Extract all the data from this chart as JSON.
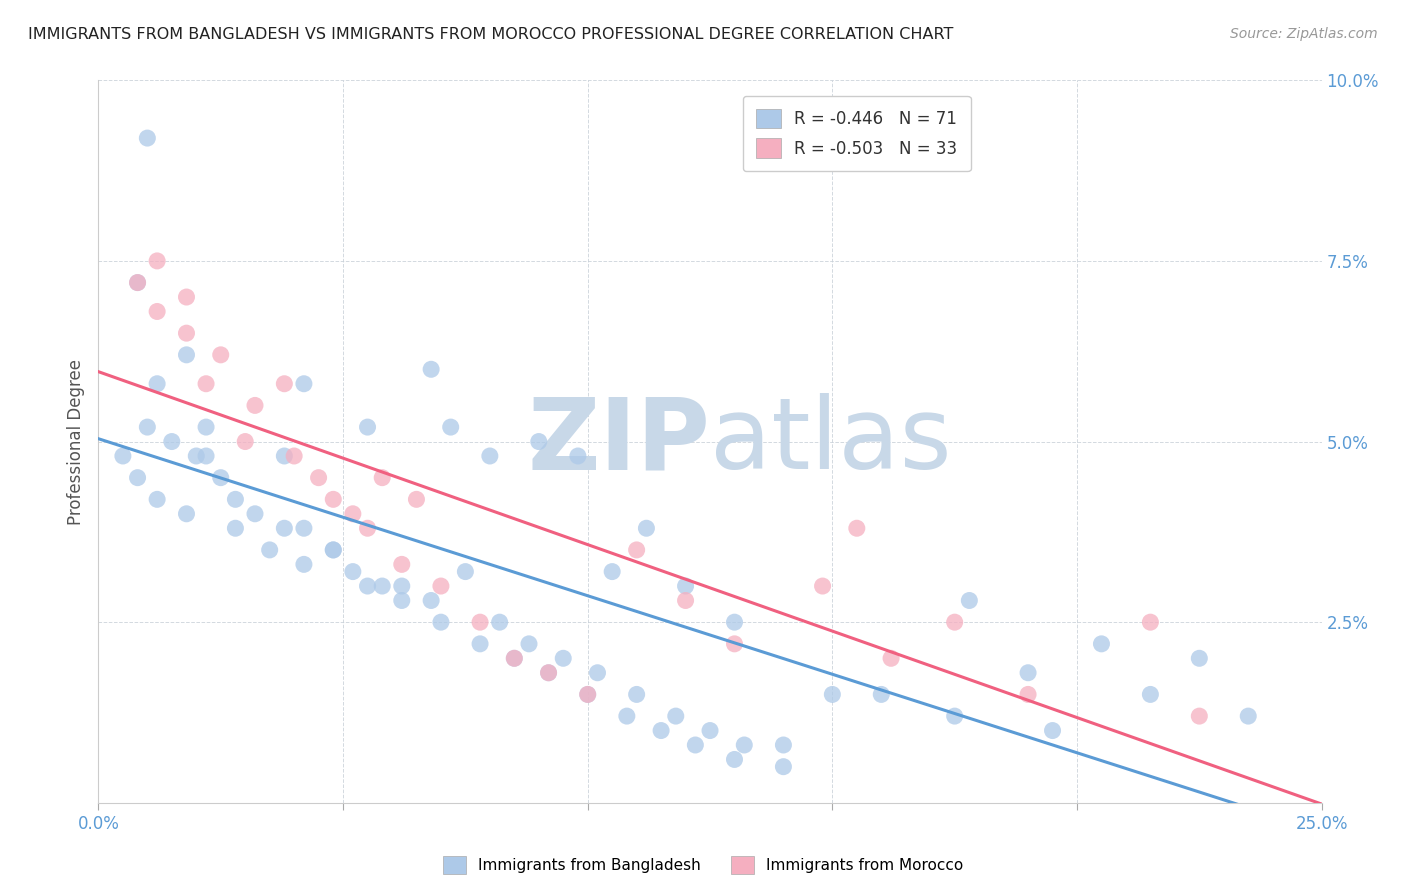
{
  "title": "IMMIGRANTS FROM BANGLADESH VS IMMIGRANTS FROM MOROCCO PROFESSIONAL DEGREE CORRELATION CHART",
  "source": "Source: ZipAtlas.com",
  "ylabel": "Professional Degree",
  "xlim": [
    0.0,
    0.25
  ],
  "ylim": [
    0.0,
    0.1
  ],
  "xticks": [
    0.0,
    0.05,
    0.1,
    0.15,
    0.2,
    0.25
  ],
  "yticks": [
    0.0,
    0.025,
    0.05,
    0.075,
    0.1
  ],
  "legend_r1": "R = -0.446",
  "legend_n1": "N = 71",
  "legend_r2": "R = -0.503",
  "legend_n2": "N = 33",
  "color_bangladesh": "#adc9e8",
  "color_morocco": "#f5afc0",
  "line_color_bangladesh": "#5b9bd5",
  "line_color_morocco": "#f06080",
  "watermark_zip": "ZIP",
  "watermark_atlas": "atlas",
  "watermark_color": "#c8d8e8",
  "bangladesh_x": [
    0.01,
    0.008,
    0.018,
    0.022,
    0.038,
    0.042,
    0.055,
    0.068,
    0.072,
    0.08,
    0.09,
    0.098,
    0.105,
    0.112,
    0.12,
    0.13,
    0.01,
    0.012,
    0.015,
    0.02,
    0.025,
    0.028,
    0.032,
    0.038,
    0.042,
    0.048,
    0.052,
    0.058,
    0.062,
    0.068,
    0.075,
    0.082,
    0.088,
    0.095,
    0.102,
    0.11,
    0.118,
    0.125,
    0.132,
    0.14,
    0.005,
    0.008,
    0.012,
    0.018,
    0.022,
    0.028,
    0.035,
    0.042,
    0.048,
    0.055,
    0.062,
    0.07,
    0.078,
    0.085,
    0.092,
    0.1,
    0.108,
    0.115,
    0.122,
    0.13,
    0.14,
    0.15,
    0.16,
    0.175,
    0.19,
    0.205,
    0.215,
    0.225,
    0.235,
    0.178,
    0.195
  ],
  "bangladesh_y": [
    0.092,
    0.072,
    0.062,
    0.052,
    0.048,
    0.058,
    0.052,
    0.06,
    0.052,
    0.048,
    0.05,
    0.048,
    0.032,
    0.038,
    0.03,
    0.025,
    0.052,
    0.058,
    0.05,
    0.048,
    0.045,
    0.042,
    0.04,
    0.038,
    0.038,
    0.035,
    0.032,
    0.03,
    0.03,
    0.028,
    0.032,
    0.025,
    0.022,
    0.02,
    0.018,
    0.015,
    0.012,
    0.01,
    0.008,
    0.008,
    0.048,
    0.045,
    0.042,
    0.04,
    0.048,
    0.038,
    0.035,
    0.033,
    0.035,
    0.03,
    0.028,
    0.025,
    0.022,
    0.02,
    0.018,
    0.015,
    0.012,
    0.01,
    0.008,
    0.006,
    0.005,
    0.015,
    0.015,
    0.012,
    0.018,
    0.022,
    0.015,
    0.02,
    0.012,
    0.028,
    0.01
  ],
  "morocco_x": [
    0.008,
    0.012,
    0.018,
    0.022,
    0.03,
    0.038,
    0.045,
    0.052,
    0.058,
    0.065,
    0.012,
    0.018,
    0.025,
    0.032,
    0.04,
    0.048,
    0.055,
    0.062,
    0.07,
    0.078,
    0.085,
    0.092,
    0.1,
    0.11,
    0.12,
    0.13,
    0.148,
    0.162,
    0.19,
    0.155,
    0.175,
    0.215,
    0.225
  ],
  "morocco_y": [
    0.072,
    0.068,
    0.065,
    0.058,
    0.05,
    0.058,
    0.045,
    0.04,
    0.045,
    0.042,
    0.075,
    0.07,
    0.062,
    0.055,
    0.048,
    0.042,
    0.038,
    0.033,
    0.03,
    0.025,
    0.02,
    0.018,
    0.015,
    0.035,
    0.028,
    0.022,
    0.03,
    0.02,
    0.015,
    0.038,
    0.025,
    0.025,
    0.012
  ]
}
